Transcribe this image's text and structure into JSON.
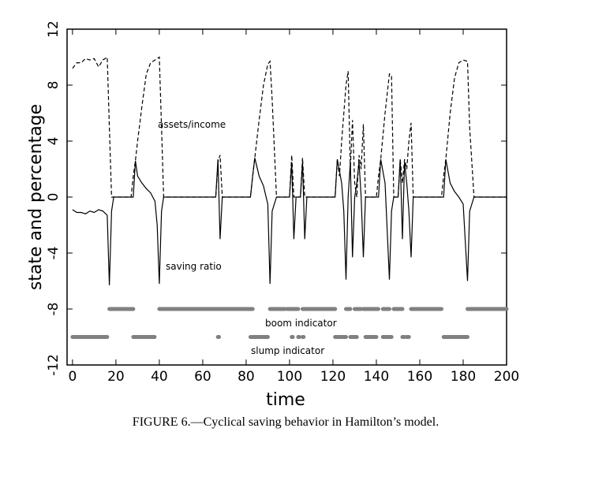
{
  "chart_data": {
    "type": "line",
    "xlabel": "time",
    "ylabel": "state and percentage",
    "caption": "FIGURE 6.—Cyclical saving behavior in Hamilton’s model.",
    "xlim": [
      -2.5,
      200
    ],
    "ylim": [
      -12,
      12
    ],
    "xticks": [
      0,
      20,
      40,
      60,
      80,
      100,
      120,
      140,
      160,
      180,
      200
    ],
    "yticks": [
      -12,
      -8,
      -4,
      0,
      4,
      8,
      12
    ],
    "series": [
      {
        "name": "assets/income",
        "color": "#000000",
        "dash": true,
        "x": [
          0,
          2,
          4,
          6,
          8,
          10,
          12,
          14,
          16,
          17,
          18,
          20,
          27,
          28,
          29,
          30,
          32,
          34,
          36,
          38,
          40,
          41,
          42,
          66,
          67,
          68,
          69,
          82,
          83,
          84,
          86,
          88,
          90,
          91,
          92,
          94,
          100,
          101,
          102,
          105,
          106,
          107,
          121,
          122,
          123,
          124,
          126,
          127,
          128,
          129,
          130,
          131,
          132,
          133,
          134,
          135,
          136,
          140,
          141,
          142,
          144,
          146,
          147,
          148,
          150,
          151,
          152,
          153,
          154,
          155,
          156,
          157,
          170,
          171,
          172,
          174,
          176,
          178,
          180,
          182,
          183,
          185,
          200
        ],
        "values": [
          9.2,
          9.6,
          9.6,
          9.9,
          9.8,
          9.9,
          9.3,
          9.8,
          10,
          5,
          0,
          0,
          0,
          1.5,
          2.6,
          4,
          6.5,
          8.8,
          9.6,
          9.8,
          10,
          5,
          0,
          0,
          2.5,
          3,
          0,
          0,
          1.5,
          2.8,
          5.5,
          8,
          9.5,
          9.7,
          7,
          0,
          0,
          3,
          0,
          0,
          2.8,
          0,
          0,
          2.7,
          1.5,
          4,
          8,
          9,
          2,
          5.5,
          1,
          0,
          3,
          2,
          5.2,
          0,
          0,
          0,
          1.5,
          2.7,
          6,
          8.8,
          8.7,
          0,
          0,
          2.7,
          1,
          2.7,
          2,
          4,
          5.3,
          0,
          0,
          1.5,
          2.7,
          6,
          8.5,
          9.6,
          9.8,
          9.7,
          5,
          0,
          0
        ]
      },
      {
        "name": "saving ratio",
        "color": "#000000",
        "dash": false,
        "x": [
          0,
          2,
          4,
          6,
          8,
          10,
          12,
          14,
          16,
          17,
          18,
          19,
          28,
          29,
          30,
          32,
          34,
          36,
          38,
          39,
          40,
          41,
          42,
          66,
          67,
          68,
          69,
          82,
          83,
          84,
          86,
          88,
          90,
          91,
          92,
          94,
          100,
          101,
          102,
          103,
          105,
          106,
          107,
          108,
          121,
          122,
          124,
          125,
          126,
          127,
          128,
          129,
          130,
          131,
          132,
          133,
          134,
          135,
          141,
          142,
          144,
          146,
          147,
          148,
          150,
          151,
          152,
          153,
          154,
          155,
          156,
          157,
          171,
          172,
          174,
          176,
          178,
          180,
          182,
          183,
          185,
          200
        ],
        "values": [
          -0.9,
          -1.1,
          -1.1,
          -1.2,
          -1.0,
          -1.1,
          -0.9,
          -1.0,
          -1.3,
          -6.3,
          -1,
          0,
          0,
          2.6,
          1.5,
          1,
          0.6,
          0.3,
          -0.3,
          -2,
          -6.2,
          -1,
          0,
          0,
          2.7,
          -3,
          0,
          0,
          1.5,
          2.8,
          1.5,
          0.8,
          -0.5,
          -6.2,
          -1,
          0,
          0,
          2.5,
          -3,
          0,
          0,
          2.5,
          -3,
          0,
          0,
          2.7,
          1,
          -1,
          -5.9,
          0,
          2.5,
          -4.3,
          0,
          1,
          2.5,
          0,
          -4.3,
          0,
          0,
          2.7,
          1,
          -5.9,
          -1,
          0,
          0,
          2.7,
          -3,
          2.5,
          1,
          -1,
          -4.3,
          0,
          0,
          2.7,
          1,
          0.4,
          0,
          -0.5,
          -6,
          -1,
          0,
          0
        ]
      }
    ],
    "indicators": [
      {
        "name": "boom indicator",
        "y": -8,
        "color": "#808080",
        "intervals": [
          [
            17,
            28
          ],
          [
            40,
            83
          ],
          [
            91,
            98
          ],
          [
            99,
            104
          ],
          [
            106,
            121
          ],
          [
            126,
            128
          ],
          [
            130,
            133
          ],
          [
            134,
            141
          ],
          [
            143,
            146
          ],
          [
            148,
            152
          ],
          [
            156,
            170
          ],
          [
            182,
            200
          ]
        ]
      },
      {
        "name": "slump indicator",
        "y": -10,
        "color": "#808080",
        "intervals": [
          [
            0,
            16
          ],
          [
            28,
            38
          ],
          [
            67,
            67.5
          ],
          [
            82,
            90
          ],
          [
            101,
            101.5
          ],
          [
            104,
            104.5
          ],
          [
            106,
            106.5
          ],
          [
            121,
            126
          ],
          [
            128,
            131
          ],
          [
            135,
            140
          ],
          [
            143,
            147
          ],
          [
            152,
            153
          ],
          [
            154,
            155
          ],
          [
            171,
            182
          ]
        ]
      }
    ]
  }
}
